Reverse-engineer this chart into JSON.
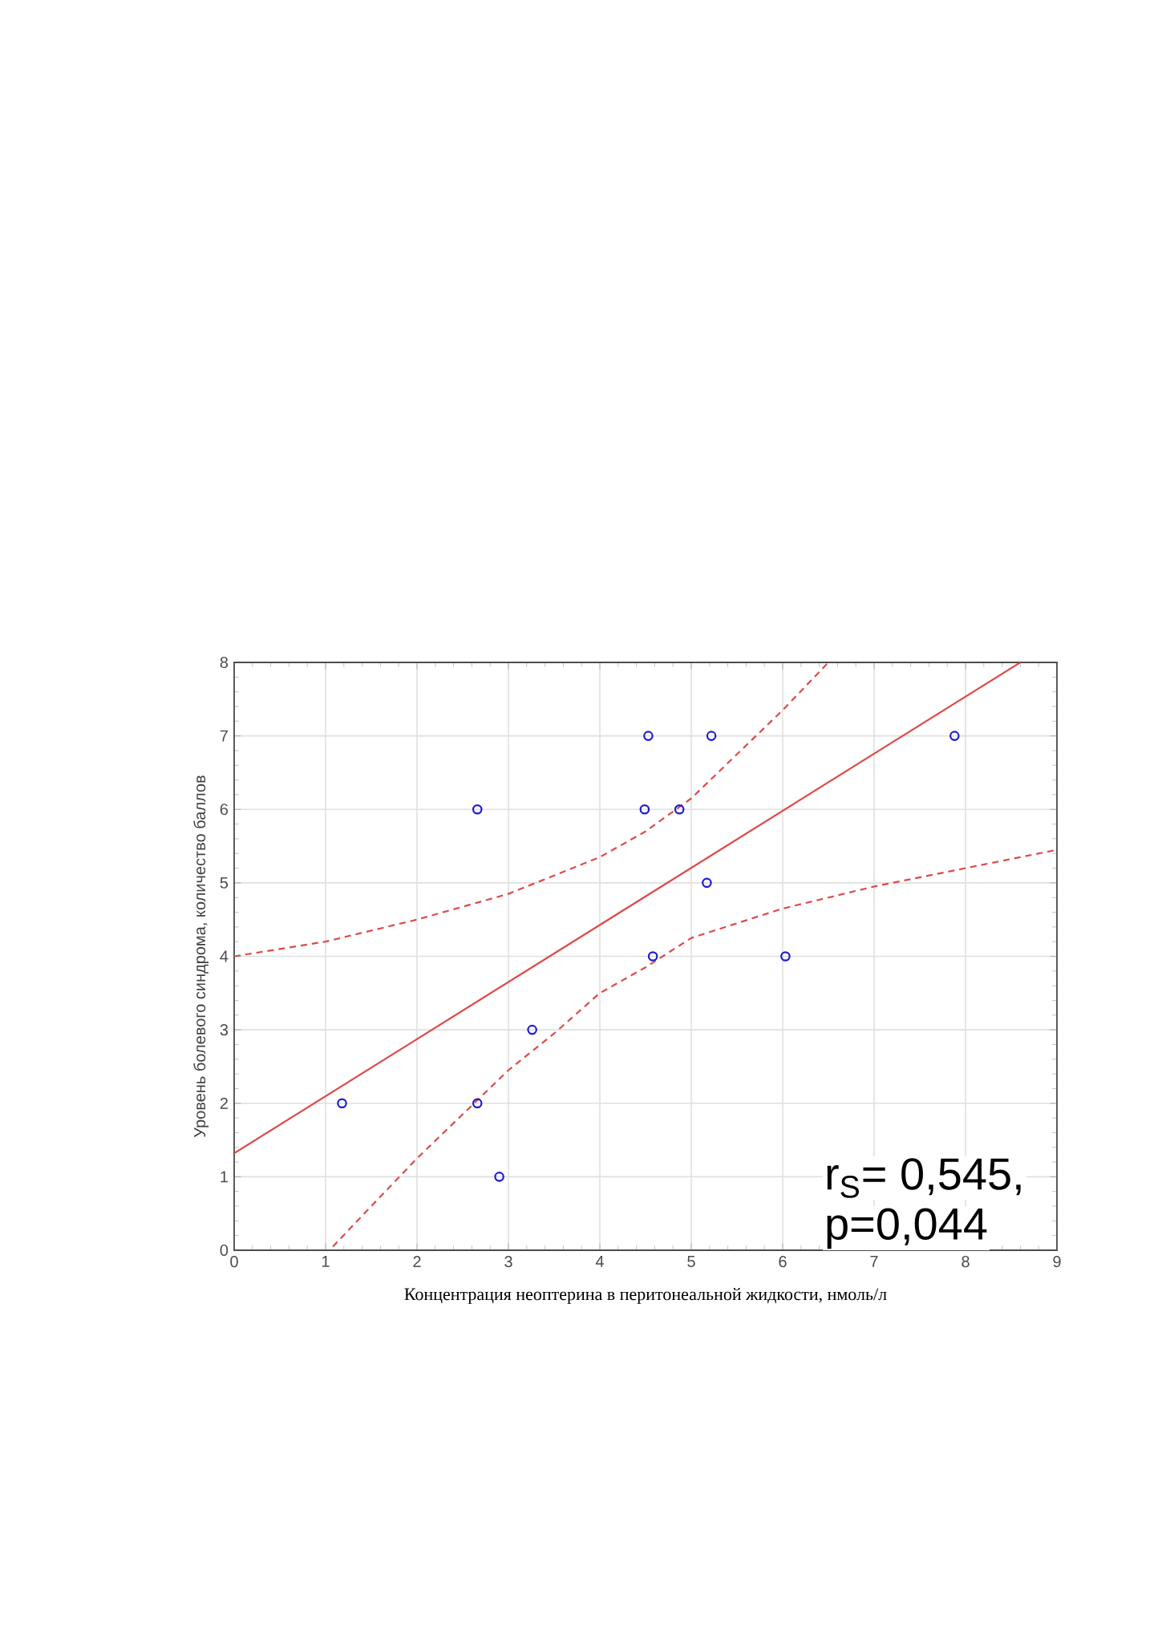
{
  "chart_data": {
    "type": "scatter",
    "xlabel": "Концентрация неоптерина в перитонеальной жидкости, нмоль/л",
    "ylabel": "Уровень болевого синдрома, количество баллов",
    "xlim": [
      0,
      9
    ],
    "ylim": [
      0,
      8
    ],
    "xticks": [
      0,
      1,
      2,
      3,
      4,
      5,
      6,
      7,
      8,
      9
    ],
    "yticks": [
      0,
      1,
      2,
      3,
      4,
      5,
      6,
      7,
      8
    ],
    "grid": true,
    "series": [
      {
        "color": "#1c1cd0",
        "marker": "circle",
        "x": [
          1.18,
          2.66,
          2.66,
          2.9,
          3.26,
          4.53,
          4.49,
          4.58,
          4.87,
          5.22,
          5.17,
          6.03,
          7.88
        ],
        "values": [
          2,
          6,
          2,
          1,
          3,
          7,
          6,
          4,
          6,
          7,
          5,
          4,
          7
        ]
      },
      {
        "type": "line",
        "color": "#e04848",
        "line_style": "solid",
        "x": [
          0,
          8.6
        ],
        "values": [
          1.32,
          8
        ]
      },
      {
        "type": "line",
        "color": "#e04848",
        "line_style": "dashed",
        "x": [
          0,
          1,
          2,
          3,
          4,
          4.5,
          5,
          5.5,
          6,
          6.5
        ],
        "values": [
          4.0,
          4.2,
          4.5,
          4.85,
          5.35,
          5.7,
          6.15,
          6.75,
          7.35,
          8.0
        ]
      },
      {
        "type": "line",
        "color": "#e04848",
        "line_style": "dashed",
        "x": [
          1.08,
          1.5,
          2,
          2.5,
          3,
          3.5,
          4,
          4.5,
          5,
          6,
          7,
          8,
          9
        ],
        "values": [
          0.05,
          0.6,
          1.25,
          1.85,
          2.45,
          2.95,
          3.5,
          3.85,
          4.25,
          4.65,
          4.95,
          5.2,
          5.45
        ]
      }
    ],
    "annotations": [
      "r$_{S}$= 0,545,",
      "p=0,044"
    ]
  }
}
